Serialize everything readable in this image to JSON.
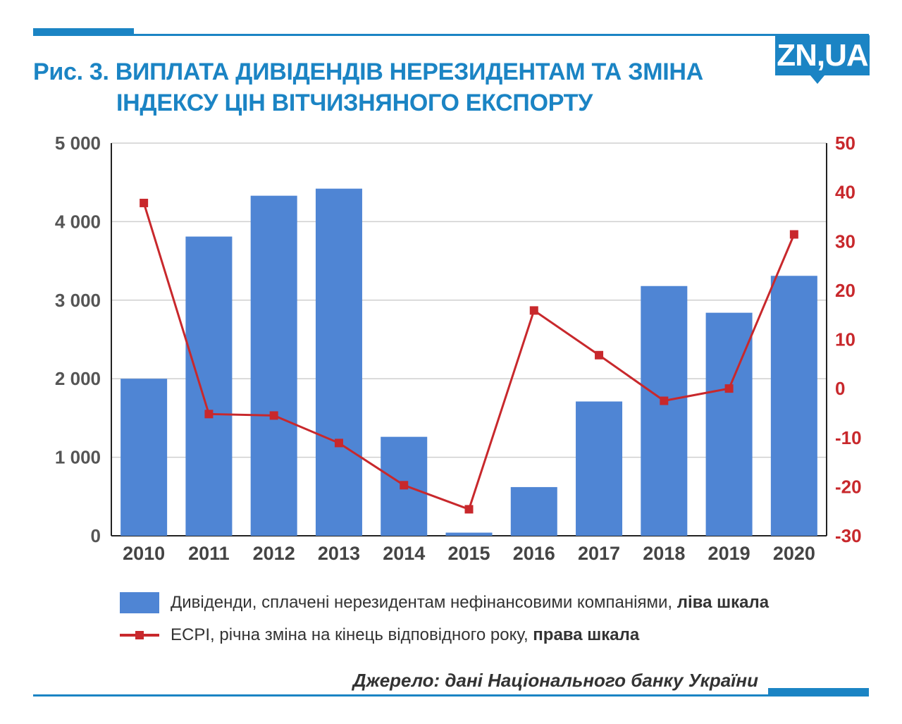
{
  "header": {
    "title_line1": "Рис. 3. ВИПЛАТА ДИВІДЕНДІВ НЕРЕЗИДЕНТАМ ТА ЗМІНА",
    "title_line2": "ІНДЕКСУ ЦІН ВІТЧИЗНЯНОГО ЕКСПОРТУ",
    "logo_text": "ZN,UA"
  },
  "chart_data": {
    "type": "bar",
    "categories": [
      "2010",
      "2011",
      "2012",
      "2013",
      "2014",
      "2015",
      "2016",
      "2017",
      "2018",
      "2019",
      "2020"
    ],
    "series": [
      {
        "name": "Дивіденди, сплачені нерезидентам нефінансовими компаніями, ліва шкала",
        "type": "bar",
        "axis": "left",
        "color": "#4f85d4",
        "values": [
          2000,
          3810,
          4330,
          4420,
          1260,
          40,
          620,
          1710,
          3180,
          2840,
          3310
        ]
      },
      {
        "name": "ECPI, річна зміна на кінець відповідного року, права шкала",
        "type": "line",
        "axis": "right",
        "color": "#c8282c",
        "marker": "square",
        "values": [
          37.8,
          -5.2,
          -5.5,
          -11.1,
          -19.7,
          -24.6,
          15.9,
          6.8,
          -2.5,
          0,
          31.4
        ]
      }
    ],
    "y_left": {
      "lim": [
        0,
        5000
      ],
      "ticks": [
        "0",
        "1 000",
        "2 000",
        "3 000",
        "4 000",
        "5 000"
      ],
      "tick_values": [
        0,
        1000,
        2000,
        3000,
        4000,
        5000
      ]
    },
    "y_right": {
      "lim": [
        -30,
        50
      ],
      "ticks": [
        "-30",
        "-20",
        "-10",
        "0",
        "10",
        "20",
        "30",
        "40",
        "50"
      ],
      "tick_values": [
        -30,
        -20,
        -10,
        0,
        10,
        20,
        30,
        40,
        50
      ]
    },
    "grid": true,
    "legend_position": "bottom"
  },
  "legend": {
    "bar_text": "Дивіденди, сплачені нерезидентам нефінансовими компаніями, ",
    "bar_bold": "ліва шкала",
    "line_text": "ECPI, річна зміна на кінець відповідного року, ",
    "line_bold": "права шкала"
  },
  "footer": {
    "source": "Джерело: дані Національного банку України"
  },
  "colors": {
    "brand_blue": "#1b84c4",
    "bar_blue": "#4f85d4",
    "line_red": "#c8282c",
    "grid_gray": "#cfcfcf",
    "tick_left": "#555555",
    "tick_right": "#c8282c"
  }
}
